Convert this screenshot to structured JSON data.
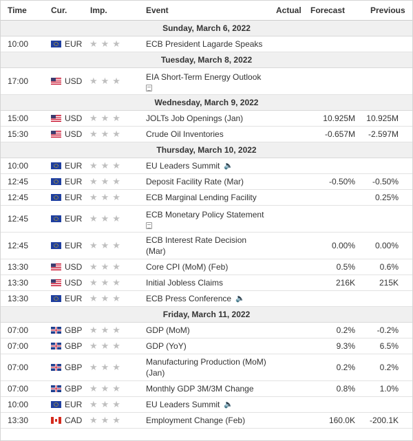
{
  "header": {
    "time": "Time",
    "currency": "Cur.",
    "importance": "Imp.",
    "event": "Event",
    "actual": "Actual",
    "forecast": "Forecast",
    "previous": "Previous"
  },
  "icons": {
    "star": "★",
    "speaker": "🔈"
  },
  "days": [
    {
      "date": "Sunday, March 6, 2022",
      "rows": [
        {
          "time": "10:00",
          "flag": "eu",
          "cur": "EUR",
          "event": "ECB President Lagarde Speaks",
          "event2": "",
          "speaker": false,
          "doc": false,
          "actual": "",
          "forecast": "",
          "previous": "",
          "tall": false
        }
      ]
    },
    {
      "date": "Tuesday, March 8, 2022",
      "rows": [
        {
          "time": "17:00",
          "flag": "us",
          "cur": "USD",
          "event": "EIA Short-Term Energy Outlook",
          "event2": "",
          "speaker": false,
          "doc": true,
          "actual": "",
          "forecast": "",
          "previous": "",
          "tall": true
        }
      ]
    },
    {
      "date": "Wednesday, March 9, 2022",
      "rows": [
        {
          "time": "15:00",
          "flag": "us",
          "cur": "USD",
          "event": "JOLTs Job Openings (Jan)",
          "event2": "",
          "speaker": false,
          "doc": false,
          "actual": "",
          "forecast": "10.925M",
          "previous": "10.925M",
          "tall": false
        },
        {
          "time": "15:30",
          "flag": "us",
          "cur": "USD",
          "event": "Crude Oil Inventories",
          "event2": "",
          "speaker": false,
          "doc": false,
          "actual": "",
          "forecast": "-0.657M",
          "previous": "-2.597M",
          "tall": false
        }
      ]
    },
    {
      "date": "Thursday, March 10, 2022",
      "rows": [
        {
          "time": "10:00",
          "flag": "eu",
          "cur": "EUR",
          "event": "EU Leaders Summit",
          "event2": "",
          "speaker": true,
          "doc": false,
          "actual": "",
          "forecast": "",
          "previous": "",
          "tall": false
        },
        {
          "time": "12:45",
          "flag": "eu",
          "cur": "EUR",
          "event": "Deposit Facility Rate (Mar)",
          "event2": "",
          "speaker": false,
          "doc": false,
          "actual": "",
          "forecast": "-0.50%",
          "previous": "-0.50%",
          "tall": false
        },
        {
          "time": "12:45",
          "flag": "eu",
          "cur": "EUR",
          "event": "ECB Marginal Lending Facility",
          "event2": "",
          "speaker": false,
          "doc": false,
          "actual": "",
          "forecast": "",
          "previous": "0.25%",
          "tall": false
        },
        {
          "time": "12:45",
          "flag": "eu",
          "cur": "EUR",
          "event": "ECB Monetary Policy Statement",
          "event2": "",
          "speaker": false,
          "doc": true,
          "actual": "",
          "forecast": "",
          "previous": "",
          "tall": true
        },
        {
          "time": "12:45",
          "flag": "eu",
          "cur": "EUR",
          "event": "ECB Interest Rate Decision",
          "event2": "(Mar)",
          "speaker": false,
          "doc": false,
          "actual": "",
          "forecast": "0.00%",
          "previous": "0.00%",
          "tall": true
        },
        {
          "time": "13:30",
          "flag": "us",
          "cur": "USD",
          "event": "Core CPI (MoM) (Feb)",
          "event2": "",
          "speaker": false,
          "doc": false,
          "actual": "",
          "forecast": "0.5%",
          "previous": "0.6%",
          "tall": false
        },
        {
          "time": "13:30",
          "flag": "us",
          "cur": "USD",
          "event": "Initial Jobless Claims",
          "event2": "",
          "speaker": false,
          "doc": false,
          "actual": "",
          "forecast": "216K",
          "previous": "215K",
          "tall": false
        },
        {
          "time": "13:30",
          "flag": "eu",
          "cur": "EUR",
          "event": "ECB Press Conference",
          "event2": "",
          "speaker": true,
          "doc": false,
          "actual": "",
          "forecast": "",
          "previous": "",
          "tall": false
        }
      ]
    },
    {
      "date": "Friday, March 11, 2022",
      "rows": [
        {
          "time": "07:00",
          "flag": "gb",
          "cur": "GBP",
          "event": "GDP (MoM)",
          "event2": "",
          "speaker": false,
          "doc": false,
          "actual": "",
          "forecast": "0.2%",
          "previous": "-0.2%",
          "tall": false
        },
        {
          "time": "07:00",
          "flag": "gb",
          "cur": "GBP",
          "event": "GDP (YoY)",
          "event2": "",
          "speaker": false,
          "doc": false,
          "actual": "",
          "forecast": "9.3%",
          "previous": "6.5%",
          "tall": false
        },
        {
          "time": "07:00",
          "flag": "gb",
          "cur": "GBP",
          "event": "Manufacturing Production (MoM)",
          "event2": "(Jan)",
          "speaker": false,
          "doc": false,
          "actual": "",
          "forecast": "0.2%",
          "previous": "0.2%",
          "tall": true
        },
        {
          "time": "07:00",
          "flag": "gb",
          "cur": "GBP",
          "event": "Monthly GDP 3M/3M Change",
          "event2": "",
          "speaker": false,
          "doc": false,
          "actual": "",
          "forecast": "0.8%",
          "previous": "1.0%",
          "tall": false
        },
        {
          "time": "10:00",
          "flag": "eu",
          "cur": "EUR",
          "event": "EU Leaders Summit",
          "event2": "",
          "speaker": true,
          "doc": false,
          "actual": "",
          "forecast": "",
          "previous": "",
          "tall": false
        },
        {
          "time": "13:30",
          "flag": "ca",
          "cur": "CAD",
          "event": "Employment Change (Feb)",
          "event2": "",
          "speaker": false,
          "doc": false,
          "actual": "",
          "forecast": "160.0K",
          "previous": "-200.1K",
          "tall": false
        }
      ]
    }
  ]
}
